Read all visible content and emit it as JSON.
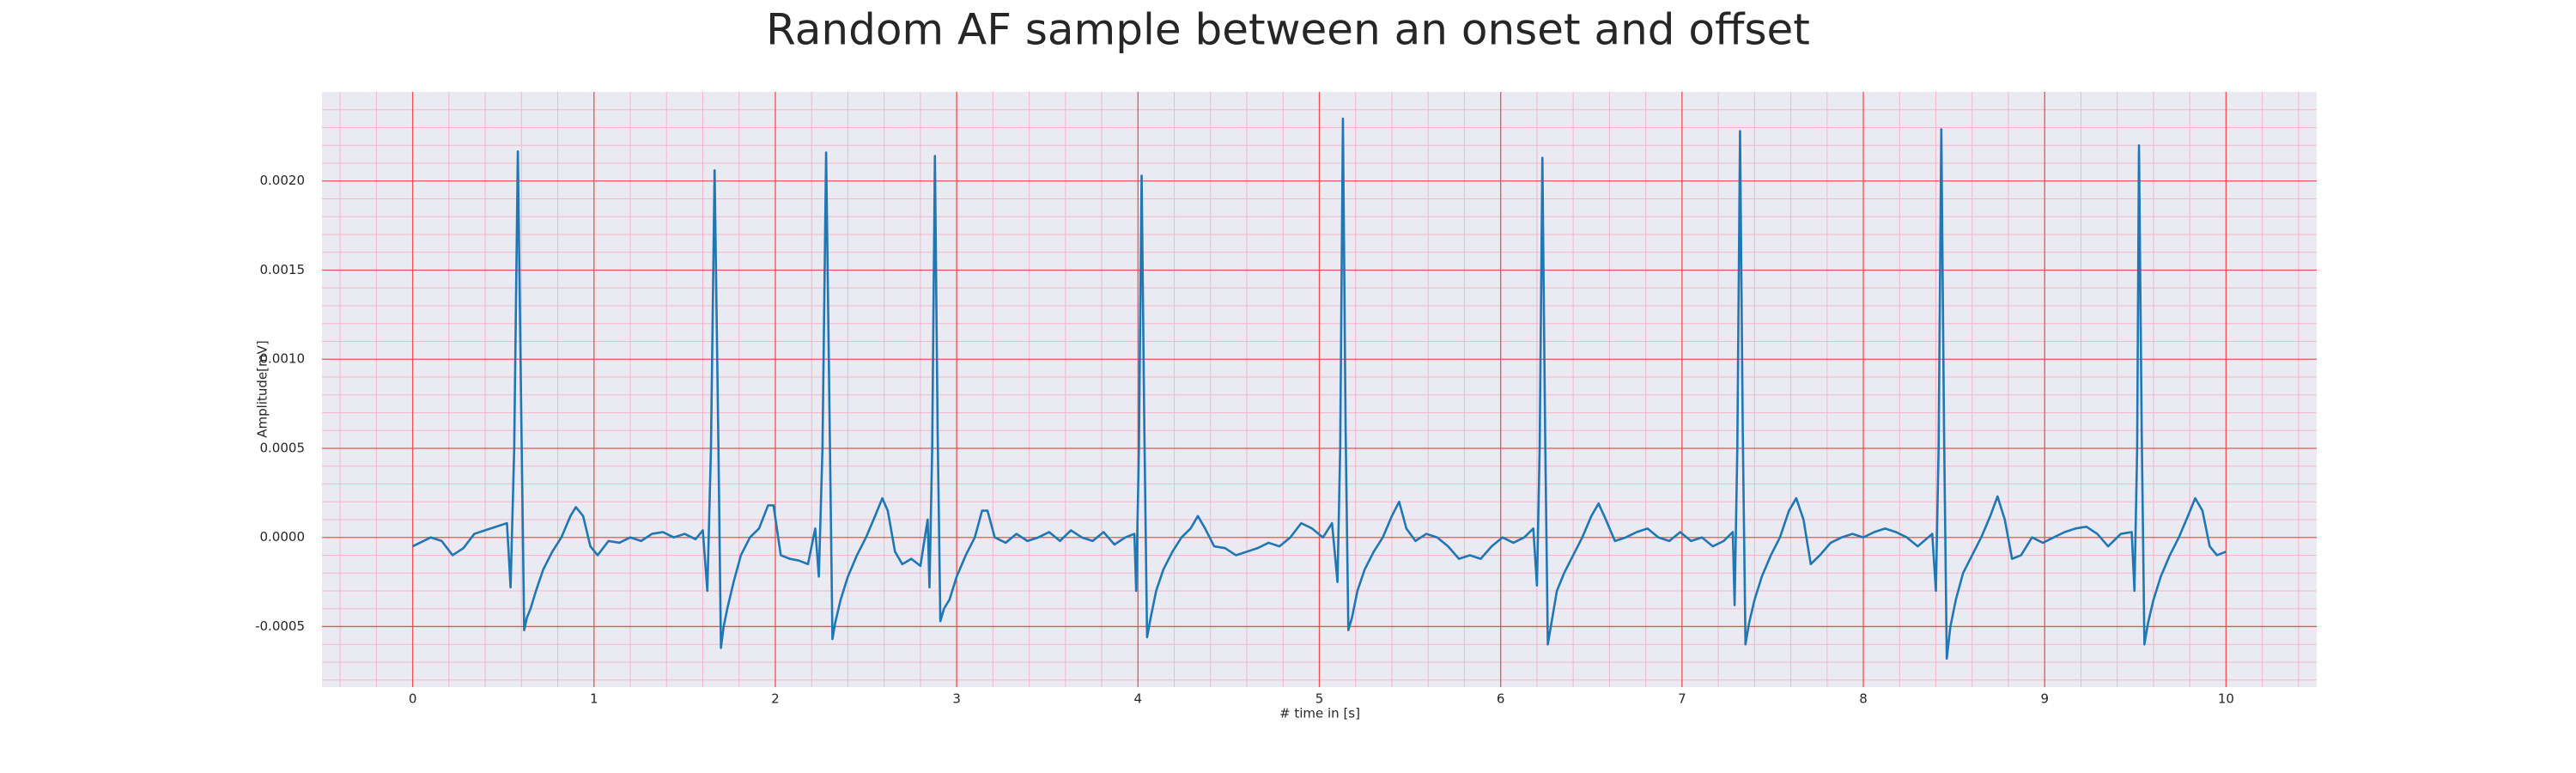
{
  "chart_data": {
    "type": "line",
    "title": "Random AF sample between an onset and offset",
    "xlabel": "# time in [s]",
    "ylabel": "Amplitude[mV]",
    "color": "#1f77b4",
    "xlim": [
      -0.5,
      10.5
    ],
    "ylim": [
      -0.00084,
      0.0025
    ],
    "xticks": [
      0,
      1,
      2,
      3,
      4,
      5,
      6,
      7,
      8,
      9,
      10
    ],
    "yticks": [
      {
        "value": -0.0005,
        "label": "-0.0005"
      },
      {
        "value": 0,
        "label": "0.0000"
      },
      {
        "value": 0.0005,
        "label": "0.0005"
      },
      {
        "value": 0.001,
        "label": "0.0010"
      },
      {
        "value": 0.0015,
        "label": "0.0015"
      },
      {
        "value": 0.002,
        "label": "0.0020"
      }
    ],
    "minor_xticks": [
      -0.4,
      -0.2,
      0.2,
      0.4,
      0.6,
      0.8,
      1.2,
      1.4,
      1.6,
      1.8,
      2.2,
      2.4,
      2.6,
      2.8,
      3.2,
      3.4,
      3.6,
      3.8,
      4.2,
      4.4,
      4.6,
      4.8,
      5.2,
      5.4,
      5.6,
      5.8,
      6.2,
      6.4,
      6.6,
      6.8,
      7.2,
      7.4,
      7.6,
      7.8,
      8.2,
      8.4,
      8.6,
      8.8,
      9.2,
      9.4,
      9.6,
      9.8,
      10.2,
      10.4
    ],
    "minor_yticks": [
      -0.0008,
      -0.0007,
      -0.0006,
      -0.0004,
      -0.0003,
      -0.0002,
      -0.0001,
      0.0001,
      0.0002,
      0.0003,
      0.0004,
      0.0006,
      0.0007,
      0.0008,
      0.0009,
      0.0011,
      0.0012,
      0.0013,
      0.0014,
      0.0016,
      0.0017,
      0.0018,
      0.0019,
      0.0021,
      0.0022,
      0.0023,
      0.0024
    ],
    "grid": true,
    "x": [
      0,
      0.04,
      0.1,
      0.16,
      0.22,
      0.28,
      0.34,
      0.4,
      0.46,
      0.52,
      0.54,
      0.56,
      0.58,
      0.6,
      0.615,
      0.63,
      0.65,
      0.68,
      0.72,
      0.77,
      0.82,
      0.87,
      0.9,
      0.94,
      0.98,
      1.02,
      1.08,
      1.14,
      1.2,
      1.26,
      1.32,
      1.38,
      1.44,
      1.5,
      1.56,
      1.6,
      1.625,
      1.645,
      1.665,
      1.685,
      1.7,
      1.715,
      1.735,
      1.77,
      1.81,
      1.86,
      1.91,
      1.96,
      1.99,
      2.03,
      2.08,
      2.13,
      2.18,
      2.22,
      2.24,
      2.26,
      2.28,
      2.3,
      2.315,
      2.33,
      2.36,
      2.4,
      2.45,
      2.5,
      2.55,
      2.59,
      2.62,
      2.66,
      2.7,
      2.75,
      2.8,
      2.84,
      2.85,
      2.865,
      2.88,
      2.895,
      2.91,
      2.93,
      2.96,
      3.0,
      3.05,
      3.1,
      3.14,
      3.17,
      3.21,
      3.27,
      3.33,
      3.39,
      3.45,
      3.51,
      3.57,
      3.63,
      3.69,
      3.75,
      3.81,
      3.87,
      3.93,
      3.98,
      3.99,
      4.005,
      4.02,
      4.035,
      4.05,
      4.07,
      4.1,
      4.14,
      4.19,
      4.24,
      4.29,
      4.33,
      4.37,
      4.42,
      4.48,
      4.54,
      4.6,
      4.66,
      4.72,
      4.78,
      4.84,
      4.9,
      4.96,
      5.02,
      5.07,
      5.1,
      5.115,
      5.13,
      5.145,
      5.16,
      5.18,
      5.21,
      5.25,
      5.3,
      5.35,
      5.4,
      5.44,
      5.48,
      5.53,
      5.59,
      5.65,
      5.71,
      5.77,
      5.83,
      5.89,
      5.95,
      6.01,
      6.07,
      6.13,
      6.18,
      6.2,
      6.215,
      6.23,
      6.245,
      6.26,
      6.28,
      6.31,
      6.35,
      6.4,
      6.45,
      6.5,
      6.54,
      6.58,
      6.63,
      6.69,
      6.75,
      6.81,
      6.87,
      6.93,
      6.99,
      7.05,
      7.11,
      7.17,
      7.23,
      7.28,
      7.29,
      7.305,
      7.32,
      7.335,
      7.35,
      7.37,
      7.4,
      7.44,
      7.49,
      7.54,
      7.59,
      7.63,
      7.67,
      7.71,
      7.76,
      7.82,
      7.88,
      7.94,
      8.0,
      8.06,
      8.12,
      8.18,
      8.24,
      8.3,
      8.38,
      8.4,
      8.415,
      8.43,
      8.445,
      8.46,
      8.48,
      8.51,
      8.55,
      8.6,
      8.65,
      8.7,
      8.74,
      8.78,
      8.82,
      8.87,
      8.93,
      8.99,
      9.05,
      9.11,
      9.17,
      9.23,
      9.29,
      9.35,
      9.42,
      9.48,
      9.495,
      9.51,
      9.52,
      9.535,
      9.55,
      9.57,
      9.6,
      9.64,
      9.69,
      9.74,
      9.79,
      9.83,
      9.87,
      9.91,
      9.95,
      10.0
    ],
    "values": [
      -5e-05,
      -3e-05,
      0,
      -2e-05,
      -0.0001,
      -6e-05,
      2e-05,
      4e-05,
      6e-05,
      8e-05,
      -0.00028,
      0.0005,
      0.002166,
      0.0006,
      -0.00052,
      -0.00045,
      -0.0004,
      -0.0003,
      -0.00018,
      -8e-05,
      0,
      0.00012,
      0.00017,
      0.00012,
      -5e-05,
      -0.0001,
      -2e-05,
      -3e-05,
      0,
      -2e-05,
      2e-05,
      3e-05,
      0,
      2e-05,
      -1e-05,
      4e-05,
      -0.0003,
      0.0005,
      0.00206,
      0.0006,
      -0.00062,
      -0.0005,
      -0.0004,
      -0.00025,
      -0.0001,
      0,
      5e-05,
      0.00018,
      0.00018,
      -0.0001,
      -0.00012,
      -0.00013,
      -0.00015,
      5e-05,
      -0.00022,
      0.0005,
      0.00216,
      0.0006,
      -0.00057,
      -0.00048,
      -0.00035,
      -0.00022,
      -0.0001,
      0,
      0.00012,
      0.00022,
      0.00015,
      -8e-05,
      -0.00015,
      -0.00012,
      -0.00016,
      0.0001,
      -0.00028,
      0.0005,
      0.00214,
      0.0006,
      -0.00047,
      -0.0004,
      -0.00035,
      -0.00022,
      -0.0001,
      0,
      0.00015,
      0.00015,
      0,
      -3e-05,
      2e-05,
      -2e-05,
      0,
      3e-05,
      -2e-05,
      4e-05,
      0,
      -2e-05,
      3e-05,
      -4e-05,
      0,
      2e-05,
      -0.0003,
      0.0005,
      0.00203,
      0.0006,
      -0.00056,
      -0.00045,
      -0.0003,
      -0.00018,
      -8e-05,
      0,
      5e-05,
      0.00012,
      5e-05,
      -5e-05,
      -6e-05,
      -0.0001,
      -8e-05,
      -6e-05,
      -3e-05,
      -5e-05,
      0,
      8e-05,
      5e-05,
      0,
      8e-05,
      -0.00025,
      0.0005,
      0.00235,
      0.0006,
      -0.00052,
      -0.00045,
      -0.0003,
      -0.00018,
      -8e-05,
      0,
      0.00012,
      0.0002,
      5e-05,
      -2e-05,
      2e-05,
      0,
      -5e-05,
      -0.00012,
      -0.0001,
      -0.00012,
      -5e-05,
      0,
      -3e-05,
      0,
      5e-05,
      -0.00027,
      0.0005,
      0.00213,
      0.0006,
      -0.0006,
      -0.00048,
      -0.0003,
      -0.0002,
      -0.0001,
      0,
      0.00012,
      0.00019,
      0.0001,
      -2e-05,
      0,
      3e-05,
      5e-05,
      0,
      -2e-05,
      3e-05,
      -2e-05,
      0,
      -5e-05,
      -2e-05,
      3e-05,
      -0.00038,
      0.0005,
      0.00228,
      0.0006,
      -0.0006,
      -0.00048,
      -0.00035,
      -0.00022,
      -0.0001,
      0,
      0.00015,
      0.00022,
      0.0001,
      -0.00015,
      -0.0001,
      -3e-05,
      0,
      2e-05,
      0,
      3e-05,
      5e-05,
      3e-05,
      0,
      -5e-05,
      2e-05,
      -0.0003,
      0.0005,
      0.00229,
      0.0006,
      -0.00068,
      -0.0005,
      -0.00035,
      -0.0002,
      -0.0001,
      0,
      0.00012,
      0.00023,
      0.0001,
      -0.00012,
      -0.0001,
      0,
      -3e-05,
      0,
      3e-05,
      5e-05,
      6e-05,
      2e-05,
      -5e-05,
      2e-05,
      3e-05,
      -0.0003,
      0.0005,
      0.0022,
      0.0006,
      -0.0006,
      -0.00048,
      -0.00035,
      -0.00022,
      -0.0001,
      0,
      0.00012,
      0.00022,
      0.00015,
      -5e-05,
      -0.0001,
      -8e-05
    ]
  }
}
